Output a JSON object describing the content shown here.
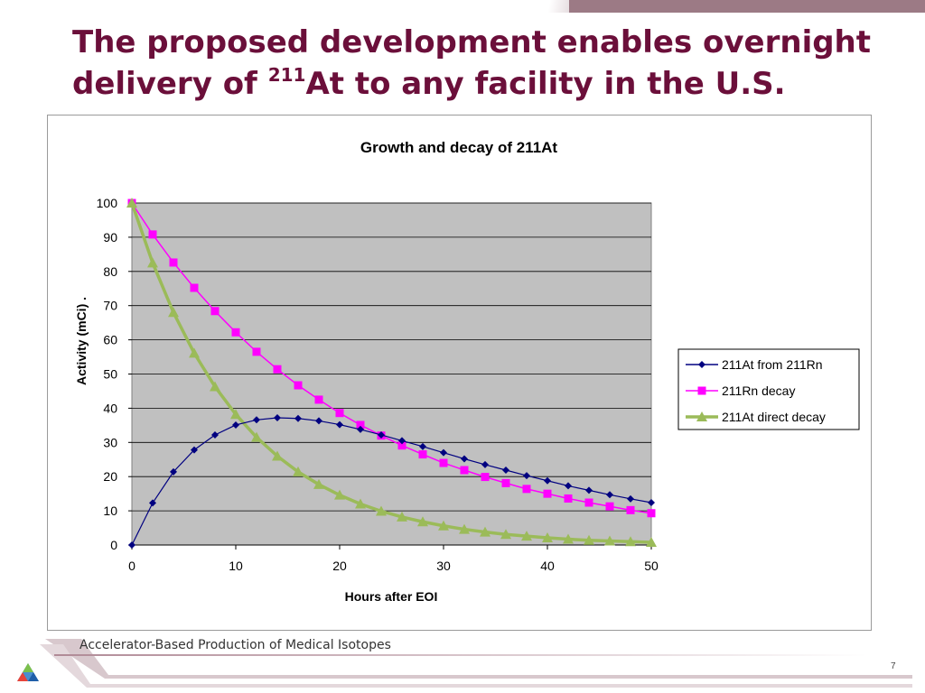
{
  "slide": {
    "title_part1": "The proposed development enables overnight",
    "title_part2": "delivery of ",
    "title_sup": "211",
    "title_part3": "At to any facility in the U.S.",
    "footer": "Accelerator-Based Production of Medical Isotopes",
    "page_number": "7",
    "colors": {
      "title": "#6b0f3a",
      "accent_bar": "#9c7a85"
    }
  },
  "chart_data": {
    "type": "line",
    "title": "Growth and decay of 211At",
    "xlabel": "Hours after EOI",
    "ylabel": "Activity (mCi) .",
    "xlim": [
      0,
      50
    ],
    "ylim": [
      0,
      100
    ],
    "xticks": [
      0,
      10,
      20,
      30,
      40,
      50
    ],
    "yticks": [
      0,
      10,
      20,
      30,
      40,
      50,
      60,
      70,
      80,
      90,
      100
    ],
    "grid": "horizontal",
    "plot_background": "#c0c0c0",
    "legend_position": "right",
    "x": [
      0,
      2,
      4,
      6,
      8,
      10,
      12,
      14,
      16,
      18,
      20,
      22,
      24,
      26,
      28,
      30,
      32,
      34,
      36,
      38,
      40,
      42,
      44,
      46,
      48,
      50
    ],
    "series": [
      {
        "name": "211At from 211Rn",
        "color": "#000080",
        "marker": "diamond",
        "values": [
          0,
          12.3,
          21.4,
          27.8,
          32.2,
          35.1,
          36.6,
          37.2,
          37.0,
          36.3,
          35.2,
          33.8,
          32.2,
          30.5,
          28.8,
          27.0,
          25.2,
          23.5,
          21.9,
          20.3,
          18.8,
          17.3,
          16.0,
          14.7,
          13.5,
          12.4
        ]
      },
      {
        "name": "211Rn decay",
        "color": "#ff00ff",
        "marker": "square",
        "values": [
          100,
          90.8,
          82.6,
          75.2,
          68.4,
          62.2,
          56.5,
          51.4,
          46.7,
          42.5,
          38.6,
          35.1,
          32.0,
          29.1,
          26.5,
          24.0,
          21.9,
          19.9,
          18.1,
          16.4,
          15.0,
          13.6,
          12.4,
          11.3,
          10.2,
          9.3
        ]
      },
      {
        "name": "211At direct decay",
        "color": "#9bbb59",
        "marker": "triangle",
        "values": [
          100,
          82.5,
          68.0,
          56.1,
          46.3,
          38.2,
          31.5,
          26.0,
          21.4,
          17.7,
          14.6,
          12.0,
          9.9,
          8.2,
          6.8,
          5.6,
          4.6,
          3.8,
          3.1,
          2.6,
          2.1,
          1.7,
          1.4,
          1.2,
          1.0,
          0.8
        ]
      }
    ]
  }
}
